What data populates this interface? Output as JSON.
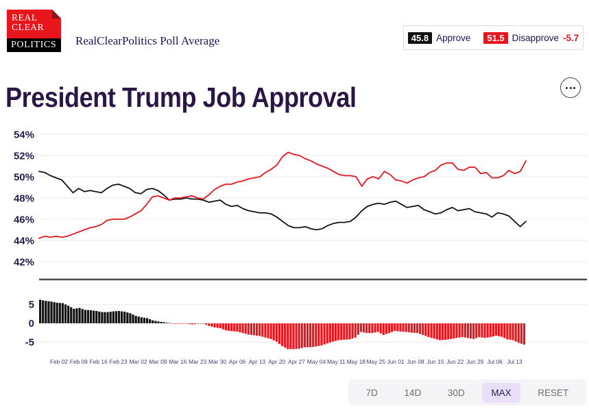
{
  "header": {
    "logo": {
      "line1": "REAL",
      "line2": "CLEAR",
      "line3": "POLITICS"
    },
    "subtitle": "RealClearPolitics Poll Average",
    "legend": {
      "approve_value": "45.8",
      "approve_label": "Approve",
      "disapprove_value": "51.5",
      "disapprove_label": "Disapprove",
      "spread_value": "-5.7"
    },
    "title": "President Trump Job Approval",
    "menu_icon": "ellipsis"
  },
  "colors": {
    "approve_black": "#111111",
    "disapprove_red": "#e8151d",
    "title_navy": "#2a1745",
    "axis_navy": "#241a4e",
    "xtick_purple": "#483a73",
    "grid": "#e8e8e8",
    "axis_line": "#4c4c4c",
    "toolbar_bg": "#f4f3f5",
    "active_button_bg": "#e9e0f7",
    "legend_border": "#dcdcdc"
  },
  "toolbar": {
    "buttons": [
      "7D",
      "14D",
      "30D",
      "MAX",
      "RESET"
    ],
    "active": "MAX"
  },
  "chart_data": [
    {
      "type": "line",
      "title": "President Trump Job Approval",
      "ylabel": "",
      "xlabel": "",
      "grid": true,
      "ylim": [
        40.5,
        54.8
      ],
      "yticks": [
        "54%",
        "52%",
        "50%",
        "48%",
        "46%",
        "44%",
        "42%"
      ],
      "x_tick_labels": [
        "Feb 02",
        "Feb 09",
        "Feb 16",
        "Feb 23",
        "Mar 02",
        "Mar 09",
        "Mar 16",
        "Mar 23",
        "Mar 30",
        "Apr 06",
        "Apr 13",
        "Apr 20",
        "Apr 27",
        "May 04",
        "May 11",
        "May 18",
        "May 25",
        "Jun 01",
        "Jun 08",
        "Jun 15",
        "Jun 22",
        "Jun 29",
        "Jul 06",
        "Jul 13"
      ],
      "x": [
        "Jan 26",
        "Jan 28",
        "Jan 30",
        "Feb 01",
        "Feb 03",
        "Feb 05",
        "Feb 07",
        "Feb 09",
        "Feb 11",
        "Feb 13",
        "Feb 15",
        "Feb 17",
        "Feb 19",
        "Feb 21",
        "Feb 23",
        "Feb 25",
        "Feb 27",
        "Mar 01",
        "Mar 03",
        "Mar 05",
        "Mar 07",
        "Mar 09",
        "Mar 11",
        "Mar 13",
        "Mar 15",
        "Mar 17",
        "Mar 19",
        "Mar 21",
        "Mar 23",
        "Mar 25",
        "Mar 27",
        "Mar 29",
        "Mar 31",
        "Apr 02",
        "Apr 04",
        "Apr 06",
        "Apr 08",
        "Apr 10",
        "Apr 12",
        "Apr 14",
        "Apr 16",
        "Apr 18",
        "Apr 20",
        "Apr 22",
        "Apr 24",
        "Apr 26",
        "Apr 28",
        "Apr 30",
        "May 02",
        "May 04",
        "May 06",
        "May 08",
        "May 10",
        "May 12",
        "May 14",
        "May 16",
        "May 18",
        "May 20",
        "May 22",
        "May 24",
        "May 26",
        "May 28",
        "May 30",
        "Jun 01",
        "Jun 03",
        "Jun 05",
        "Jun 07",
        "Jun 09",
        "Jun 11",
        "Jun 13",
        "Jun 15",
        "Jun 17",
        "Jun 19",
        "Jun 21",
        "Jun 23",
        "Jun 25",
        "Jun 27",
        "Jun 29",
        "Jul 01",
        "Jul 03",
        "Jul 05",
        "Jul 07",
        "Jul 09",
        "Jul 11",
        "Jul 13",
        "Jul 15",
        "Jul 17"
      ],
      "series": [
        {
          "name": "Approve",
          "color": "#111111",
          "current_value": 45.8,
          "values": [
            50.5,
            50.4,
            50.1,
            49.9,
            49.7,
            49.1,
            48.5,
            48.9,
            48.6,
            48.7,
            48.6,
            48.5,
            48.9,
            49.2,
            49.3,
            49.1,
            48.9,
            48.5,
            48.4,
            48.8,
            48.9,
            48.7,
            48.3,
            47.8,
            47.9,
            47.9,
            48.0,
            47.9,
            47.9,
            47.8,
            47.6,
            47.7,
            47.8,
            47.4,
            47.2,
            47.3,
            47.0,
            46.8,
            46.7,
            46.6,
            46.6,
            46.5,
            46.2,
            45.8,
            45.4,
            45.2,
            45.2,
            45.3,
            45.1,
            45.0,
            45.1,
            45.4,
            45.6,
            45.7,
            45.7,
            45.8,
            46.2,
            46.8,
            47.2,
            47.4,
            47.5,
            47.4,
            47.6,
            47.7,
            47.4,
            47.1,
            47.2,
            47.3,
            46.9,
            46.7,
            46.5,
            46.6,
            46.9,
            47.1,
            46.8,
            46.9,
            47.0,
            46.7,
            46.6,
            46.5,
            46.2,
            46.6,
            46.5,
            46.3,
            45.8,
            45.3,
            45.8
          ]
        },
        {
          "name": "Disapprove",
          "color": "#e8151d",
          "current_value": 51.5,
          "values": [
            44.2,
            44.4,
            44.3,
            44.4,
            44.3,
            44.4,
            44.6,
            44.8,
            45.0,
            45.2,
            45.3,
            45.5,
            45.9,
            46.0,
            46.0,
            46.0,
            46.2,
            46.5,
            46.8,
            47.4,
            48.1,
            48.2,
            48.0,
            47.8,
            48.0,
            48.0,
            48.1,
            48.2,
            48.0,
            47.9,
            48.3,
            48.8,
            49.1,
            49.3,
            49.3,
            49.5,
            49.6,
            49.8,
            49.9,
            50.0,
            50.4,
            50.7,
            51.1,
            51.9,
            52.3,
            52.1,
            52.0,
            51.7,
            51.5,
            51.2,
            51.0,
            50.8,
            50.5,
            50.2,
            50.1,
            50.1,
            50.0,
            49.1,
            49.8,
            50.0,
            49.8,
            50.5,
            50.2,
            49.7,
            49.6,
            49.4,
            49.7,
            49.9,
            50.0,
            50.4,
            50.6,
            51.1,
            51.3,
            51.3,
            50.7,
            50.6,
            50.9,
            50.9,
            50.3,
            50.4,
            49.9,
            49.9,
            50.1,
            50.6,
            50.3,
            50.5,
            51.5
          ]
        }
      ]
    },
    {
      "type": "bar",
      "name": "Spread (Approve - Disapprove)",
      "yticks": [
        "5",
        "0",
        "-5"
      ],
      "positive_color": "#111111",
      "negative_color": "#e8151d",
      "current_value": -5.7,
      "values": [
        6.3,
        6.0,
        5.8,
        5.5,
        5.4,
        4.7,
        3.9,
        4.1,
        3.6,
        3.5,
        3.3,
        3.0,
        3.0,
        3.2,
        3.3,
        3.1,
        2.7,
        2.0,
        1.6,
        1.4,
        0.8,
        0.5,
        0.3,
        0.0,
        -0.1,
        -0.1,
        -0.1,
        -0.3,
        -0.1,
        -0.1,
        -0.7,
        -1.1,
        -1.3,
        -1.9,
        -2.1,
        -2.2,
        -2.6,
        -3.0,
        -3.2,
        -3.4,
        -3.8,
        -4.2,
        -4.9,
        -6.1,
        -6.9,
        -6.9,
        -6.8,
        -6.4,
        -6.4,
        -6.2,
        -5.9,
        -5.4,
        -4.9,
        -4.5,
        -4.4,
        -4.3,
        -3.8,
        -2.3,
        -2.6,
        -2.6,
        -2.3,
        -3.1,
        -2.6,
        -2.0,
        -2.2,
        -2.3,
        -2.5,
        -2.6,
        -3.1,
        -3.7,
        -4.1,
        -4.5,
        -4.4,
        -4.2,
        -3.9,
        -3.7,
        -3.9,
        -4.2,
        -3.7,
        -3.9,
        -3.7,
        -3.3,
        -3.6,
        -4.3,
        -4.5,
        -5.2,
        -5.7
      ]
    }
  ]
}
